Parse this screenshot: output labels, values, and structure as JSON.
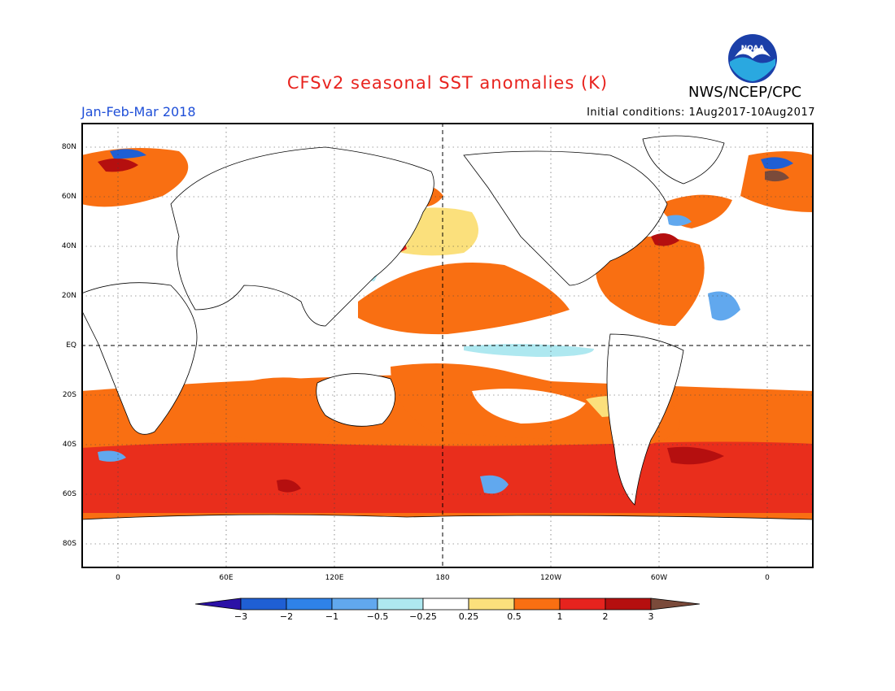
{
  "header": {
    "title": "CFSv2 seasonal SST anomalies (K)",
    "agency": "NWS/NCEP/CPC",
    "logo_text": "NOAA",
    "period": "Jan-Feb-Mar 2018",
    "initial_conditions": "Initial conditions: 1Aug2017-10Aug2017"
  },
  "map": {
    "lat_labels": [
      "80N",
      "60N",
      "40N",
      "20N",
      "EQ",
      "20S",
      "40S",
      "60S",
      "80S"
    ],
    "lon_labels": [
      "0",
      "60E",
      "120E",
      "180",
      "120W",
      "60W",
      "0"
    ],
    "highlight_lines": [
      "EQ",
      "180"
    ]
  },
  "colorbar": {
    "labels": [
      "−3",
      "−2",
      "−1",
      "−0.5",
      "−0.25",
      "0.25",
      "0.5",
      "1",
      "2",
      "3"
    ],
    "colors": [
      "#2b11a6",
      "#1f5fd4",
      "#2f82e8",
      "#61a8ee",
      "#aee8f0",
      "#ffffff",
      "#fbe07c",
      "#f96f12",
      "#e6231e",
      "#b50f0f",
      "#7a4a3a"
    ]
  }
}
